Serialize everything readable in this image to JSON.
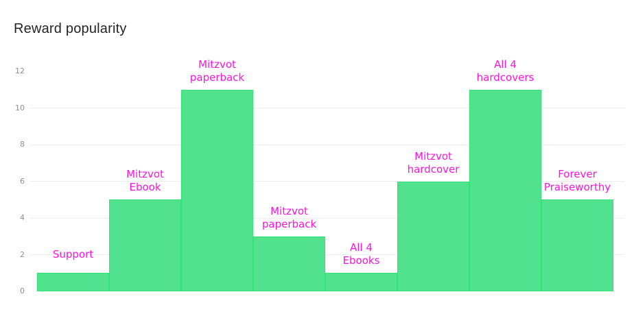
{
  "title": "Reward popularity",
  "colors": {
    "background": "#ffffff",
    "title_text": "#242424",
    "axis_text": "#8f8f8f",
    "gridline": "#ededed",
    "bar_fill": "#52e28e",
    "bar_border": "#2fe573",
    "label_text": "#ff12e0"
  },
  "chart_data": {
    "type": "bar",
    "title": "Reward popularity",
    "categories": [
      "Support",
      "Mitzvot Ebook",
      "Mitzvot paperback",
      "Mitzvot paperback",
      "All 4 Ebooks",
      "Mitzvot hardcover",
      "All 4 hardcovers",
      "Forever Praiseworthy"
    ],
    "label_lines": [
      [
        "Support"
      ],
      [
        "Mitzvot",
        "Ebook"
      ],
      [
        "Mitzvot",
        "paperback"
      ],
      [
        "Mitzvot",
        "paperback"
      ],
      [
        "All 4",
        "Ebooks"
      ],
      [
        "Mitzvot",
        "hardcover"
      ],
      [
        "All 4",
        "hardcovers"
      ],
      [
        "Forever",
        "Praiseworthy"
      ]
    ],
    "values": [
      1,
      5,
      11,
      3,
      1,
      6,
      11,
      5
    ],
    "xlabel": "",
    "ylabel": "",
    "ylim": [
      0,
      12
    ],
    "yticks": [
      0,
      2,
      4,
      6,
      8,
      10,
      12
    ],
    "gridlines_at": [
      2,
      4,
      6,
      8,
      10
    ],
    "grid": true,
    "legend_position": "none",
    "bar_gap": 0
  }
}
